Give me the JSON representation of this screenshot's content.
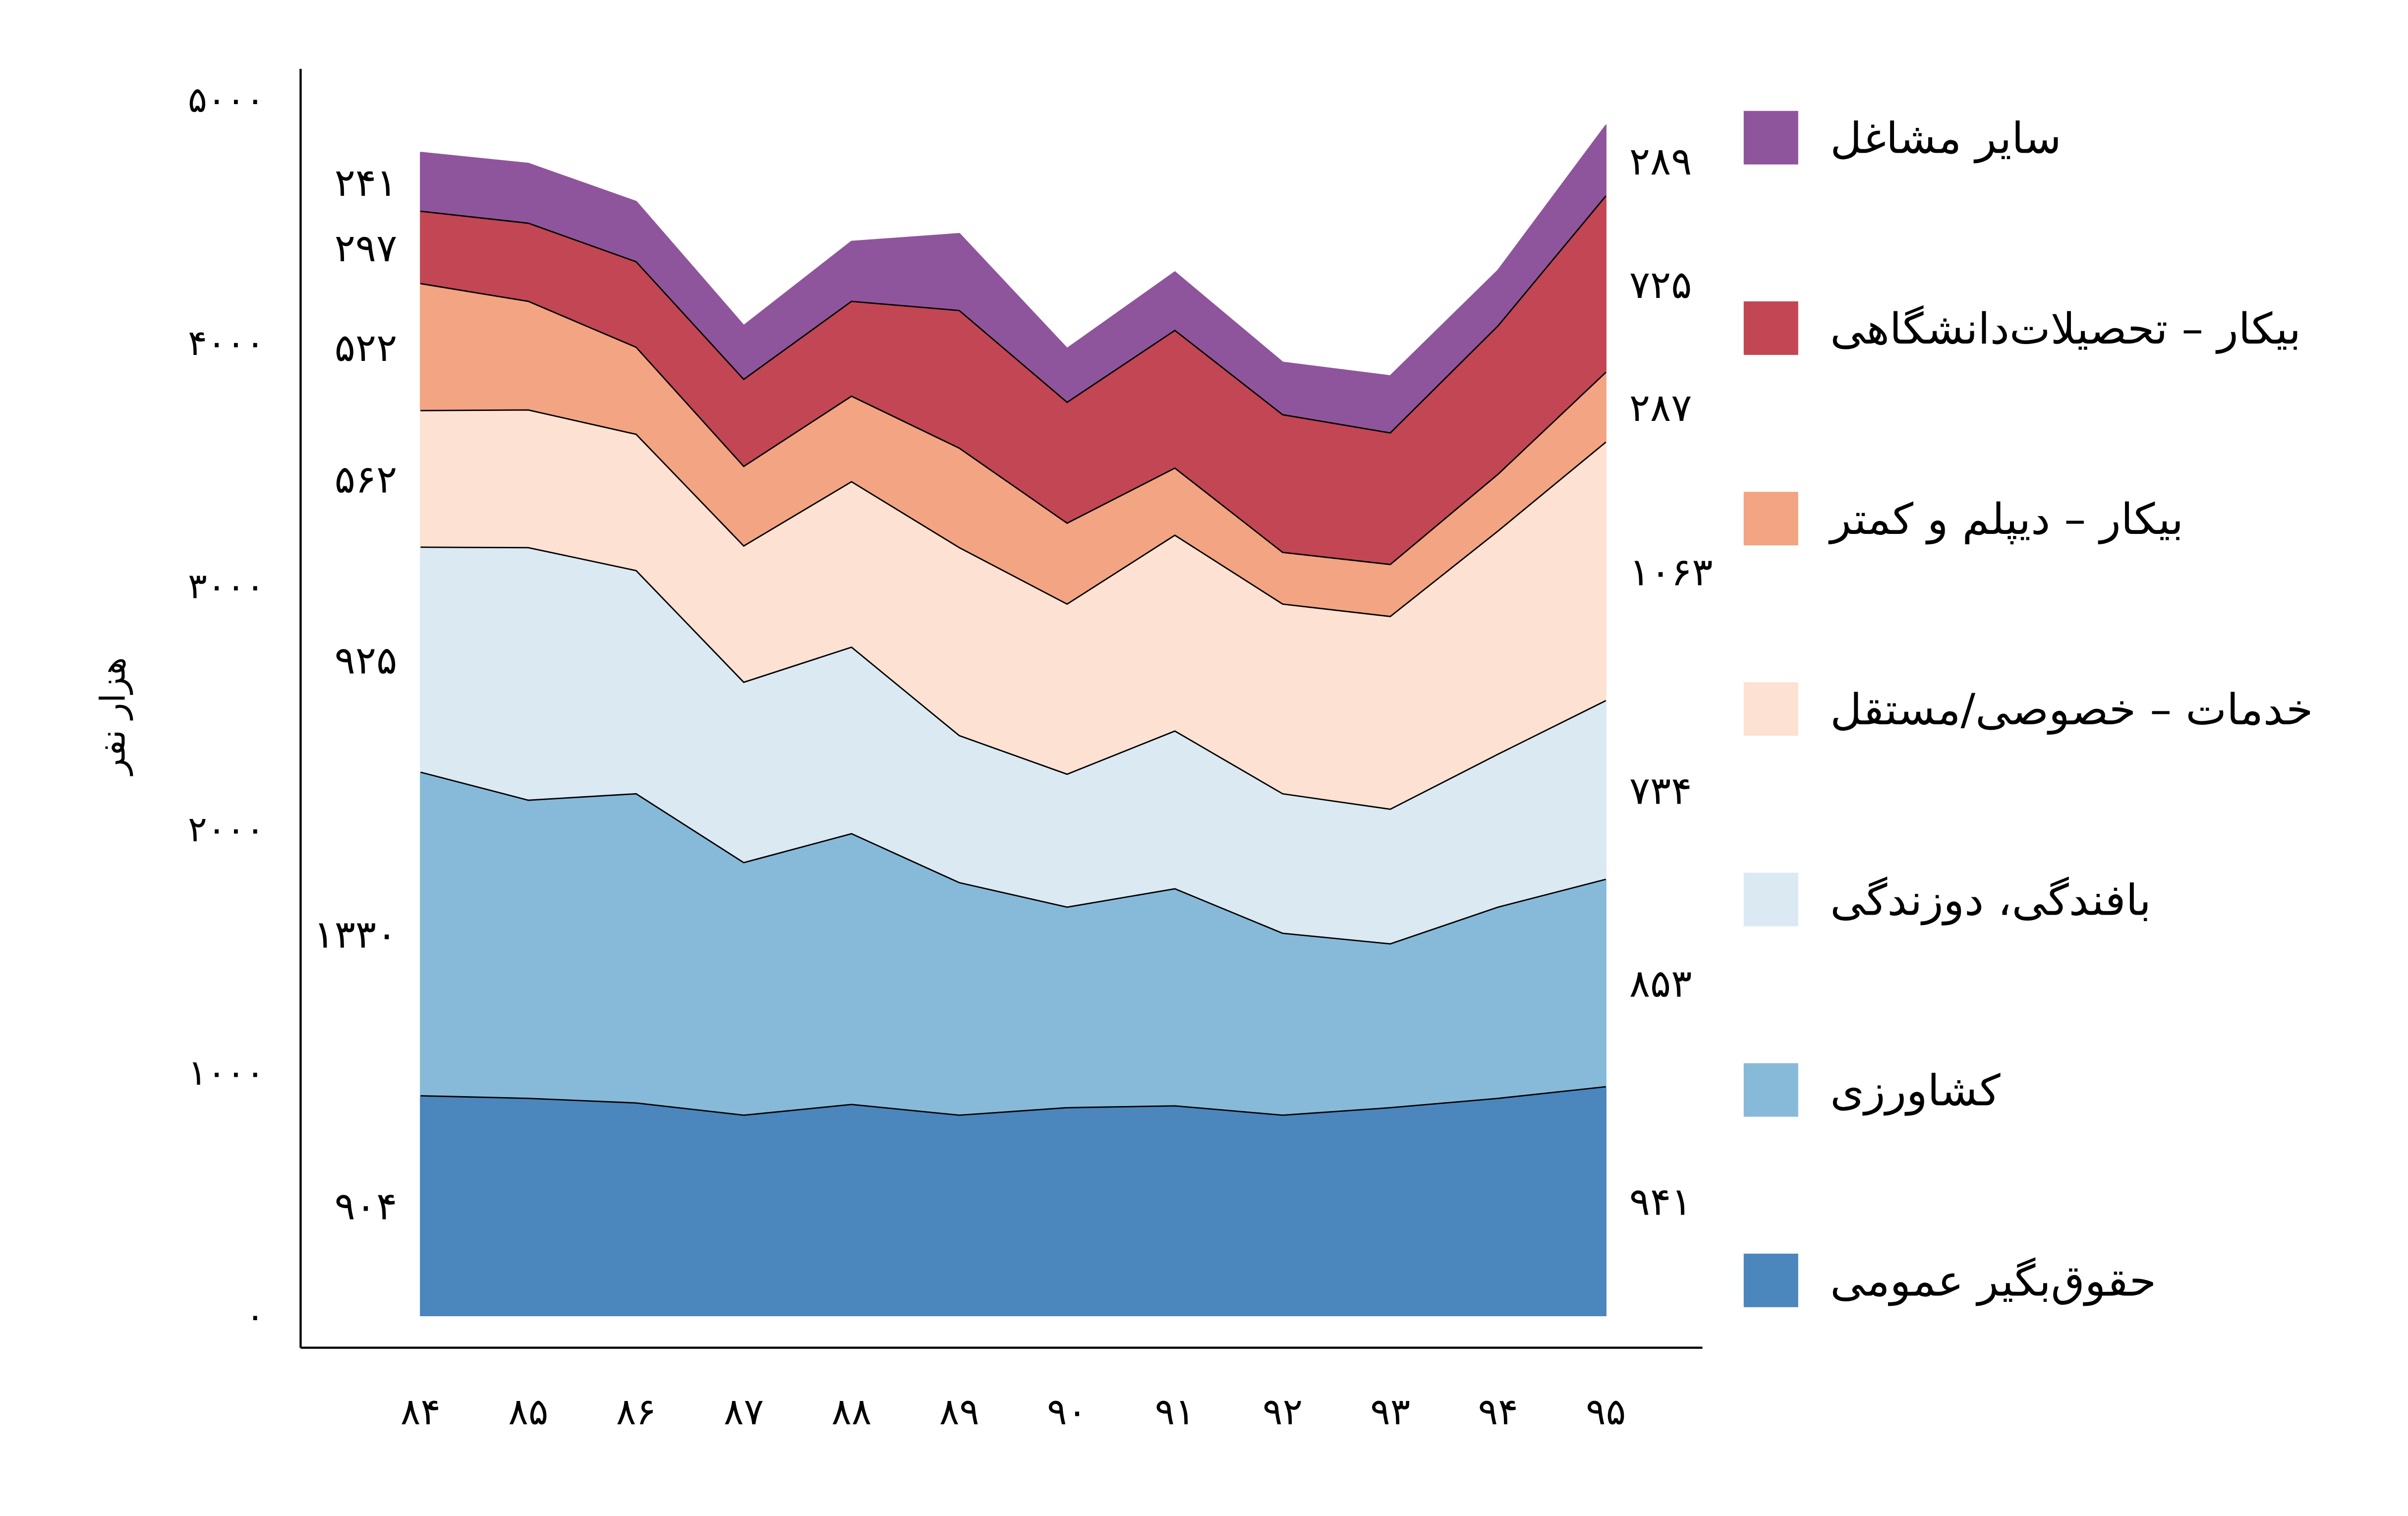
{
  "chart_data": {
    "type": "area",
    "stacked": true,
    "title": "",
    "xlabel": "",
    "ylabel": "هزار نفر",
    "x": [
      "۸۴",
      "۸۵",
      "۸۶",
      "۸۷",
      "۸۸",
      "۸۹",
      "۹۰",
      "۹۱",
      "۹۲",
      "۹۳",
      "۹۴",
      "۹۵"
    ],
    "ylim": [
      0,
      5000
    ],
    "y_ticks": [
      0,
      1000,
      2000,
      3000,
      4000,
      5000
    ],
    "y_tick_labels": [
      "۰",
      "۱۰۰۰",
      "۲۰۰۰",
      "۳۰۰۰",
      "۴۰۰۰",
      "۵۰۰۰"
    ],
    "grid": false,
    "legend": "right",
    "series": [
      {
        "name": "حقوق‌بگیر عمومی",
        "color": "#4B86BD",
        "values": [
          904,
          893,
          874,
          824,
          868,
          824,
          855,
          862,
          824,
          855,
          893,
          941
        ],
        "start_label": "۹۰۴",
        "end_label": "۹۴۱"
      },
      {
        "name": "کشاورزی",
        "color": "#87BAD9",
        "values": [
          1330,
          1226,
          1271,
          1038,
          1113,
          956,
          824,
          893,
          748,
          673,
          786,
          853
        ],
        "start_label": "۱۳۳۰",
        "end_label": "۸۵۳"
      },
      {
        "name": "بافندگی، دوزندگی",
        "color": "#DAE9F2",
        "values": [
          925,
          1038,
          918,
          742,
          767,
          604,
          547,
          648,
          573,
          554,
          629,
          734
        ],
        "start_label": "۹۲۵",
        "end_label": "۷۳۴"
      },
      {
        "name": "خدمات – خصوصی/مستقل",
        "color": "#FDE1D2",
        "values": [
          562,
          566,
          560,
          560,
          680,
          773,
          699,
          805,
          780,
          792,
          918,
          1063
        ],
        "start_label": "۵۶۲",
        "end_label": "۱۰۶۳"
      },
      {
        "name": "بیکار – دیپلم و کمتر",
        "color": "#F2A483",
        "values": [
          522,
          447,
          358,
          327,
          352,
          409,
          333,
          276,
          213,
          214,
          233,
          287
        ],
        "start_label": "۵۲۲",
        "end_label": "۲۸۷"
      },
      {
        "name": "بیکار – تحصیلات‌دانشگاهی",
        "color": "#C24653",
        "values": [
          297,
          321,
          352,
          358,
          390,
          566,
          497,
          566,
          566,
          541,
          610,
          725
        ],
        "start_label": "۲۹۷",
        "end_label": "۷۲۵"
      },
      {
        "name": "سایر مشاغل",
        "color": "#8F559C",
        "values": [
          241,
          245,
          246,
          220,
          245,
          315,
          220,
          239,
          214,
          233,
          227,
          289
        ],
        "start_label": "۲۴۱",
        "end_label": "۲۸۹"
      }
    ]
  }
}
